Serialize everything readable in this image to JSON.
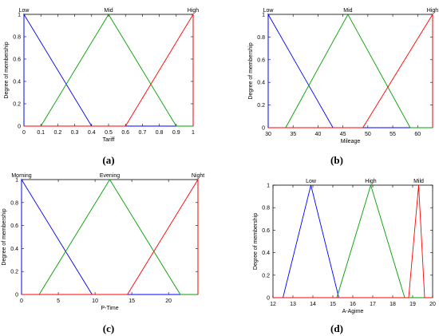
{
  "chart_data": [
    {
      "type": "line",
      "caption": "(a)",
      "xlabel": "Tariff",
      "ylabel": "Degree of membership",
      "xlim": [
        0,
        1
      ],
      "ylim": [
        0,
        1
      ],
      "xticks": [
        0,
        0.1,
        0.2,
        0.3,
        0.4,
        0.5,
        0.6,
        0.7,
        0.8,
        0.9,
        1
      ],
      "yticks": [
        0,
        0.2,
        0.4,
        0.6,
        0.8,
        1
      ],
      "series": [
        {
          "name": "Low",
          "color": "#0000ff",
          "x": [
            0,
            0,
            0.4,
            1
          ],
          "y": [
            0,
            1,
            0,
            0
          ]
        },
        {
          "name": "Mid",
          "color": "#00a000",
          "x": [
            0,
            0.1,
            0.5,
            0.9,
            1
          ],
          "y": [
            0,
            0,
            1,
            0,
            0
          ]
        },
        {
          "name": "High",
          "color": "#ff0000",
          "x": [
            0,
            0.6,
            1,
            1
          ],
          "y": [
            0,
            0,
            1,
            0
          ]
        }
      ],
      "labels": [
        {
          "text": "Low",
          "x": 0
        },
        {
          "text": "Mid",
          "x": 0.5
        },
        {
          "text": "High",
          "x": 1
        }
      ]
    },
    {
      "type": "line",
      "caption": "(b)",
      "xlabel": "Mileage",
      "ylabel": "Degree of membership",
      "xlim": [
        30,
        63
      ],
      "ylim": [
        0,
        1
      ],
      "xticks": [
        30,
        35,
        40,
        45,
        50,
        55,
        60
      ],
      "yticks": [
        0,
        0.2,
        0.4,
        0.6,
        0.8,
        1
      ],
      "series": [
        {
          "name": "Low",
          "color": "#0000ff",
          "x": [
            30,
            30,
            43,
            63
          ],
          "y": [
            0,
            1,
            0,
            0
          ]
        },
        {
          "name": "Mid",
          "color": "#00a000",
          "x": [
            30,
            33.5,
            46,
            58.5,
            63
          ],
          "y": [
            0,
            0,
            1,
            0,
            0
          ]
        },
        {
          "name": "High",
          "color": "#ff0000",
          "x": [
            30,
            49,
            63,
            63
          ],
          "y": [
            0,
            0,
            1,
            0
          ]
        }
      ],
      "labels": [
        {
          "text": "Low",
          "x": 30
        },
        {
          "text": "Mid",
          "x": 46
        },
        {
          "text": "High",
          "x": 63
        }
      ]
    },
    {
      "type": "line",
      "caption": "(c)",
      "xlabel": "P-Time",
      "ylabel": "Degree of membership",
      "xlim": [
        0,
        24
      ],
      "ylim": [
        0,
        1
      ],
      "xticks": [
        0,
        5,
        10,
        15,
        20
      ],
      "yticks": [
        0,
        0.2,
        0.4,
        0.6,
        0.8,
        1
      ],
      "series": [
        {
          "name": "Morning",
          "color": "#0000ff",
          "x": [
            0,
            0,
            9.6,
            24
          ],
          "y": [
            0,
            1,
            0,
            0
          ]
        },
        {
          "name": "Evening",
          "color": "#00a000",
          "x": [
            0,
            2.4,
            12,
            21.6,
            24
          ],
          "y": [
            0,
            0,
            1,
            0,
            0
          ]
        },
        {
          "name": "Night",
          "color": "#ff0000",
          "x": [
            0,
            14.4,
            24,
            24
          ],
          "y": [
            0,
            0,
            1,
            0
          ]
        }
      ],
      "labels": [
        {
          "text": "Morning",
          "x": 0
        },
        {
          "text": "Evening",
          "x": 12
        },
        {
          "text": "Night",
          "x": 24
        }
      ]
    },
    {
      "type": "line",
      "caption": "(d)",
      "xlabel": "A-Agime",
      "ylabel": "Degree of membership",
      "xlim": [
        12,
        20
      ],
      "ylim": [
        0,
        1
      ],
      "xticks": [
        12,
        13,
        14,
        15,
        16,
        17,
        18,
        19,
        20
      ],
      "yticks": [
        0,
        0.2,
        0.4,
        0.6,
        0.8,
        1
      ],
      "series": [
        {
          "name": "Low",
          "color": "#0000ff",
          "x": [
            12,
            12.5,
            13.9,
            15.3,
            20
          ],
          "y": [
            0,
            0,
            1,
            0,
            0
          ]
        },
        {
          "name": "High",
          "color": "#00a000",
          "x": [
            12,
            15.2,
            16.9,
            18.6,
            20
          ],
          "y": [
            0,
            0,
            1,
            0,
            0
          ]
        },
        {
          "name": "Mild",
          "color": "#ff0000",
          "x": [
            12,
            18.8,
            19.3,
            19.6,
            20
          ],
          "y": [
            0,
            0,
            1,
            0,
            0
          ]
        }
      ],
      "labels": [
        {
          "text": "Low",
          "x": 13.9
        },
        {
          "text": "High",
          "x": 16.9
        },
        {
          "text": "Mild",
          "x": 19.3
        }
      ]
    }
  ]
}
